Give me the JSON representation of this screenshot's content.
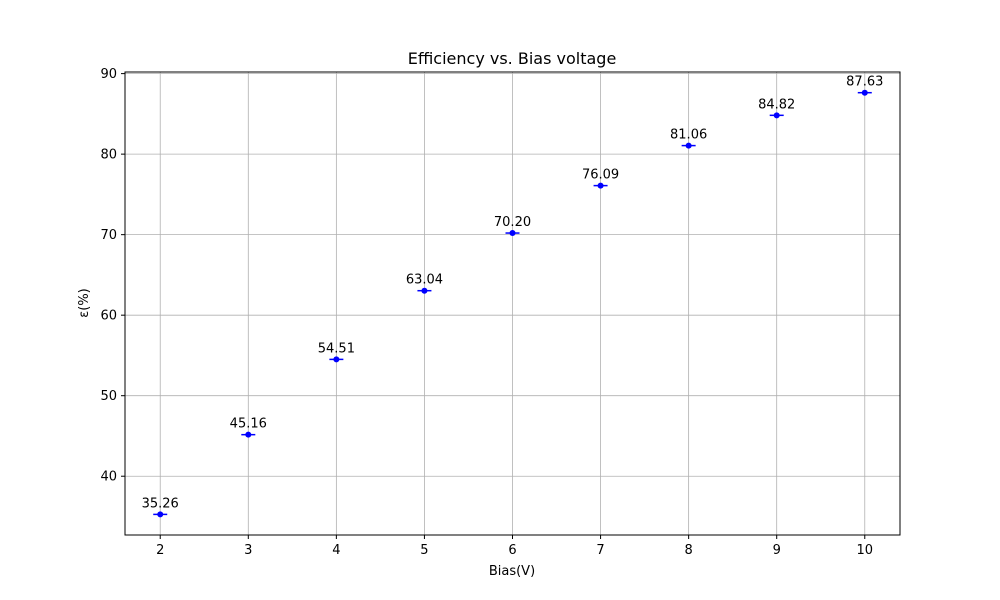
{
  "chart_data": {
    "type": "scatter",
    "title": "Efficiency vs. Bias voltage",
    "xlabel": "Bias(V)",
    "ylabel": "ε(%)",
    "x": [
      2,
      3,
      4,
      5,
      6,
      7,
      8,
      9,
      10
    ],
    "y": [
      35.26,
      45.16,
      54.51,
      63.04,
      70.2,
      76.09,
      81.06,
      84.82,
      87.63
    ],
    "data_labels": [
      "35.26",
      "45.16",
      "54.51",
      "63.04",
      "70.20",
      "76.09",
      "81.06",
      "84.82",
      "87.63"
    ],
    "x_ticks": [
      2,
      3,
      4,
      5,
      6,
      7,
      8,
      9,
      10
    ],
    "y_ticks": [
      40,
      50,
      60,
      70,
      80,
      90
    ],
    "xlim": [
      1.6,
      10.4
    ],
    "ylim": [
      32.7,
      90.2
    ],
    "grid": true,
    "marker": "circle",
    "color": "#0000ff",
    "error_bars": "horizontal"
  }
}
